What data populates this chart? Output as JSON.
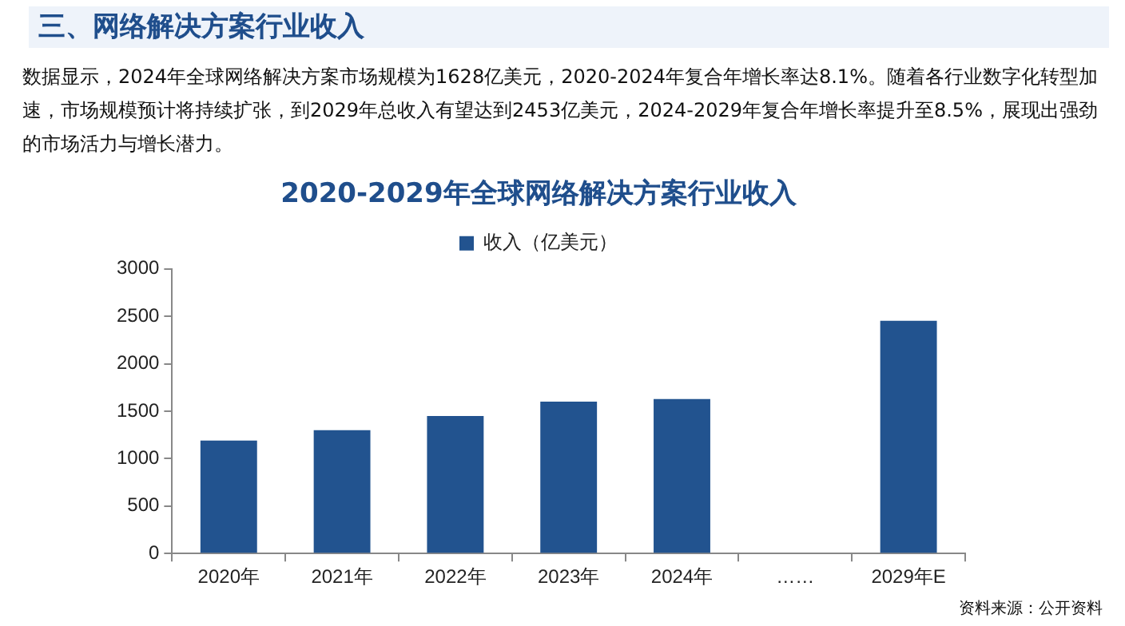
{
  "chart_data": {
    "type": "bar",
    "title": "2020-2029年全球网络解决方案行业收入",
    "annotations": [
      "三、网络解决方案行业收入",
      "数据显示，2024年全球网络解决方案市场规模为1628亿美元，2020-2024年复合年增长率达8.1%。随着各行业数字化转型加速，市场规模预计将持续扩张，到2029年总收入有望达到2453亿美元，2024-2029年复合年增长率提升至8.5%，展现出强劲的市场活力与增长潜力。",
      "资料来源：公开资料"
    ],
    "categories": [
      "2020年",
      "2021年",
      "2022年",
      "2023年",
      "2024年",
      "……",
      "2029年E"
    ],
    "series": [
      {
        "name": "收入（亿美元）",
        "color": "#22538f",
        "values": [
          1190,
          1300,
          1450,
          1600,
          1628,
          null,
          2453
        ]
      }
    ],
    "ylim": [
      0,
      3000
    ],
    "yticks": [
      0,
      500,
      1000,
      1500,
      2000,
      2500,
      3000
    ],
    "grid": false,
    "legend": "top"
  }
}
